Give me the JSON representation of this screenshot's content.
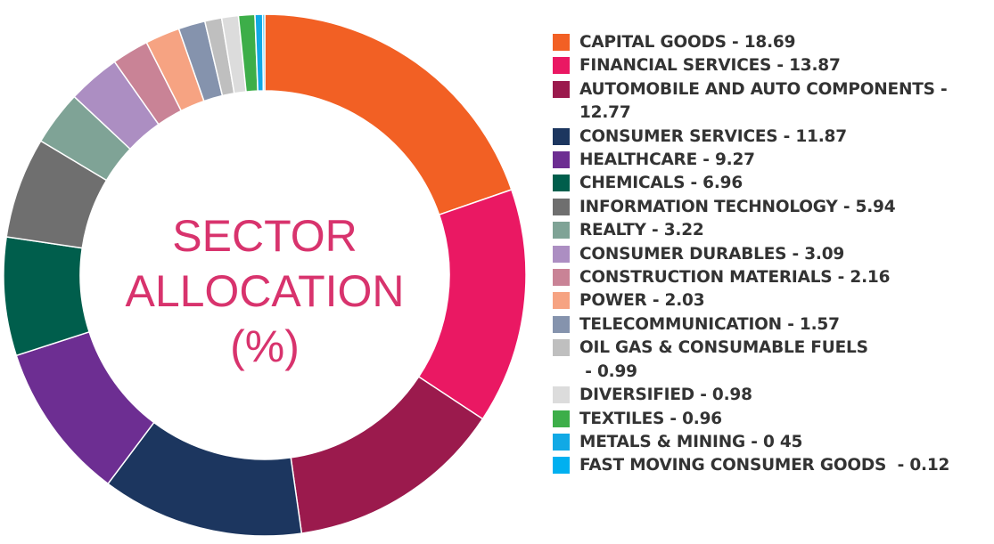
{
  "chart_data": {
    "type": "pie",
    "center_label_lines": [
      "SECTOR",
      "ALLOCATION",
      "(%)"
    ],
    "slices": [
      {
        "label": "CAPITAL GOODS - 18.69",
        "legend_lines": [
          "CAPITAL GOODS - 18.69"
        ],
        "value": 18.69,
        "color": "#f26024"
      },
      {
        "label": "FINANCIAL SERVICES - 13.87",
        "legend_lines": [
          "FINANCIAL SERVICES - 13.87"
        ],
        "value": 13.87,
        "color": "#ea1863"
      },
      {
        "label": "AUTOMOBILE AND AUTO COMPONENTS - 12.77",
        "legend_lines": [
          "AUTOMOBILE AND AUTO COMPONENTS -",
          "12.77"
        ],
        "value": 12.77,
        "color": "#9b1a4d"
      },
      {
        "label": "CONSUMER SERVICES - 11.87",
        "legend_lines": [
          "CONSUMER SERVICES - 11.87"
        ],
        "value": 11.87,
        "color": "#1c365f"
      },
      {
        "label": "HEALTHCARE - 9.27",
        "legend_lines": [
          "HEALTHCARE - 9.27"
        ],
        "value": 9.27,
        "color": "#6d2e92"
      },
      {
        "label": "CHEMICALS - 6.96",
        "legend_lines": [
          "CHEMICALS - 6.96"
        ],
        "value": 6.96,
        "color": "#005e4c"
      },
      {
        "label": "INFORMATION TECHNOLOGY - 5.94",
        "legend_lines": [
          "INFORMATION TECHNOLOGY - 5.94"
        ],
        "value": 5.94,
        "color": "#6f6f6f"
      },
      {
        "label": "REALTY - 3.22",
        "legend_lines": [
          "REALTY - 3.22"
        ],
        "value": 3.22,
        "color": "#7fa396"
      },
      {
        "label": "CONSUMER DURABLES - 3.09",
        "legend_lines": [
          "CONSUMER DURABLES - 3.09"
        ],
        "value": 3.09,
        "color": "#ac8ec2"
      },
      {
        "label": "CONSTRUCTION MATERIALS - 2.16",
        "legend_lines": [
          "CONSTRUCTION MATERIALS - 2.16"
        ],
        "value": 2.16,
        "color": "#c98396"
      },
      {
        "label": "POWER - 2.03",
        "legend_lines": [
          "POWER - 2.03"
        ],
        "value": 2.03,
        "color": "#f6a382"
      },
      {
        "label": "TELECOMMUNICATION - 1.57",
        "legend_lines": [
          "TELECOMMUNICATION - 1.57"
        ],
        "value": 1.57,
        "color": "#8593ad"
      },
      {
        "label": "OIL GAS & CONSUMABLE FUELS - 0.99",
        "legend_lines": [
          "OIL GAS & CONSUMABLE FUELS",
          " - 0.99"
        ],
        "value": 0.99,
        "color": "#bfbfbf"
      },
      {
        "label": "DIVERSIFIED - 0.98",
        "legend_lines": [
          "DIVERSIFIED - 0.98"
        ],
        "value": 0.98,
        "color": "#dcdcdc"
      },
      {
        "label": "TEXTILES - 0.96",
        "legend_lines": [
          "TEXTILES - 0.96"
        ],
        "value": 0.96,
        "color": "#3dae49"
      },
      {
        "label": "METALS & MINING - 0 45",
        "legend_lines": [
          "METALS & MINING - 0 45"
        ],
        "value": 0.45,
        "color": "#11a9e5"
      },
      {
        "label": "FAST MOVING CONSUMER GOODS  - 0.12",
        "legend_lines": [
          "FAST MOVING CONSUMER GOODS  - 0.12"
        ],
        "value": 0.12,
        "color": "#00b0f0"
      }
    ]
  }
}
